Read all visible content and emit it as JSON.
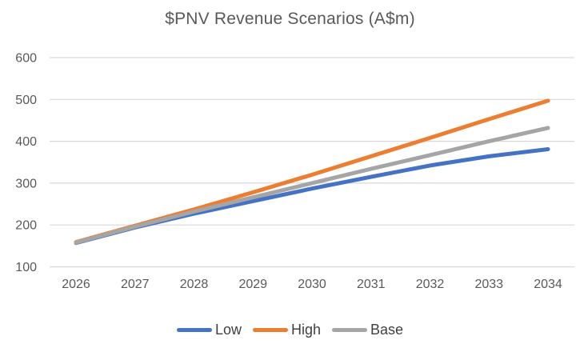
{
  "chart_data": {
    "type": "line",
    "title": "$PNV Revenue Scenarios (A$m)",
    "x": [
      "2026",
      "2027",
      "2028",
      "2029",
      "2030",
      "2031",
      "2032",
      "2033",
      "2034"
    ],
    "series": [
      {
        "name": "Low",
        "color": "#4472C4",
        "values": [
          157,
          194,
          227,
          257,
          287,
          315,
          342,
          364,
          381
        ]
      },
      {
        "name": "High",
        "color": "#ED7D31",
        "values": [
          159,
          198,
          237,
          278,
          320,
          364,
          408,
          453,
          497
        ]
      },
      {
        "name": "Base",
        "color": "#A5A5A5",
        "values": [
          158,
          196,
          232,
          266,
          300,
          334,
          367,
          400,
          432
        ]
      }
    ],
    "legend_order": [
      "Low",
      "High",
      "Base"
    ],
    "legend_position": "bottom",
    "xlabel": "",
    "ylabel": "",
    "ylim": [
      100,
      600
    ],
    "yticks": [
      100,
      200,
      300,
      400,
      500,
      600
    ],
    "grid": "horizontal-only"
  },
  "style": {
    "gridline_color": "#D9D9D9",
    "axis_label_color": "#595959",
    "title_color": "#595959",
    "legend_text_color": "#404040",
    "background_color": "#FFFFFF"
  }
}
